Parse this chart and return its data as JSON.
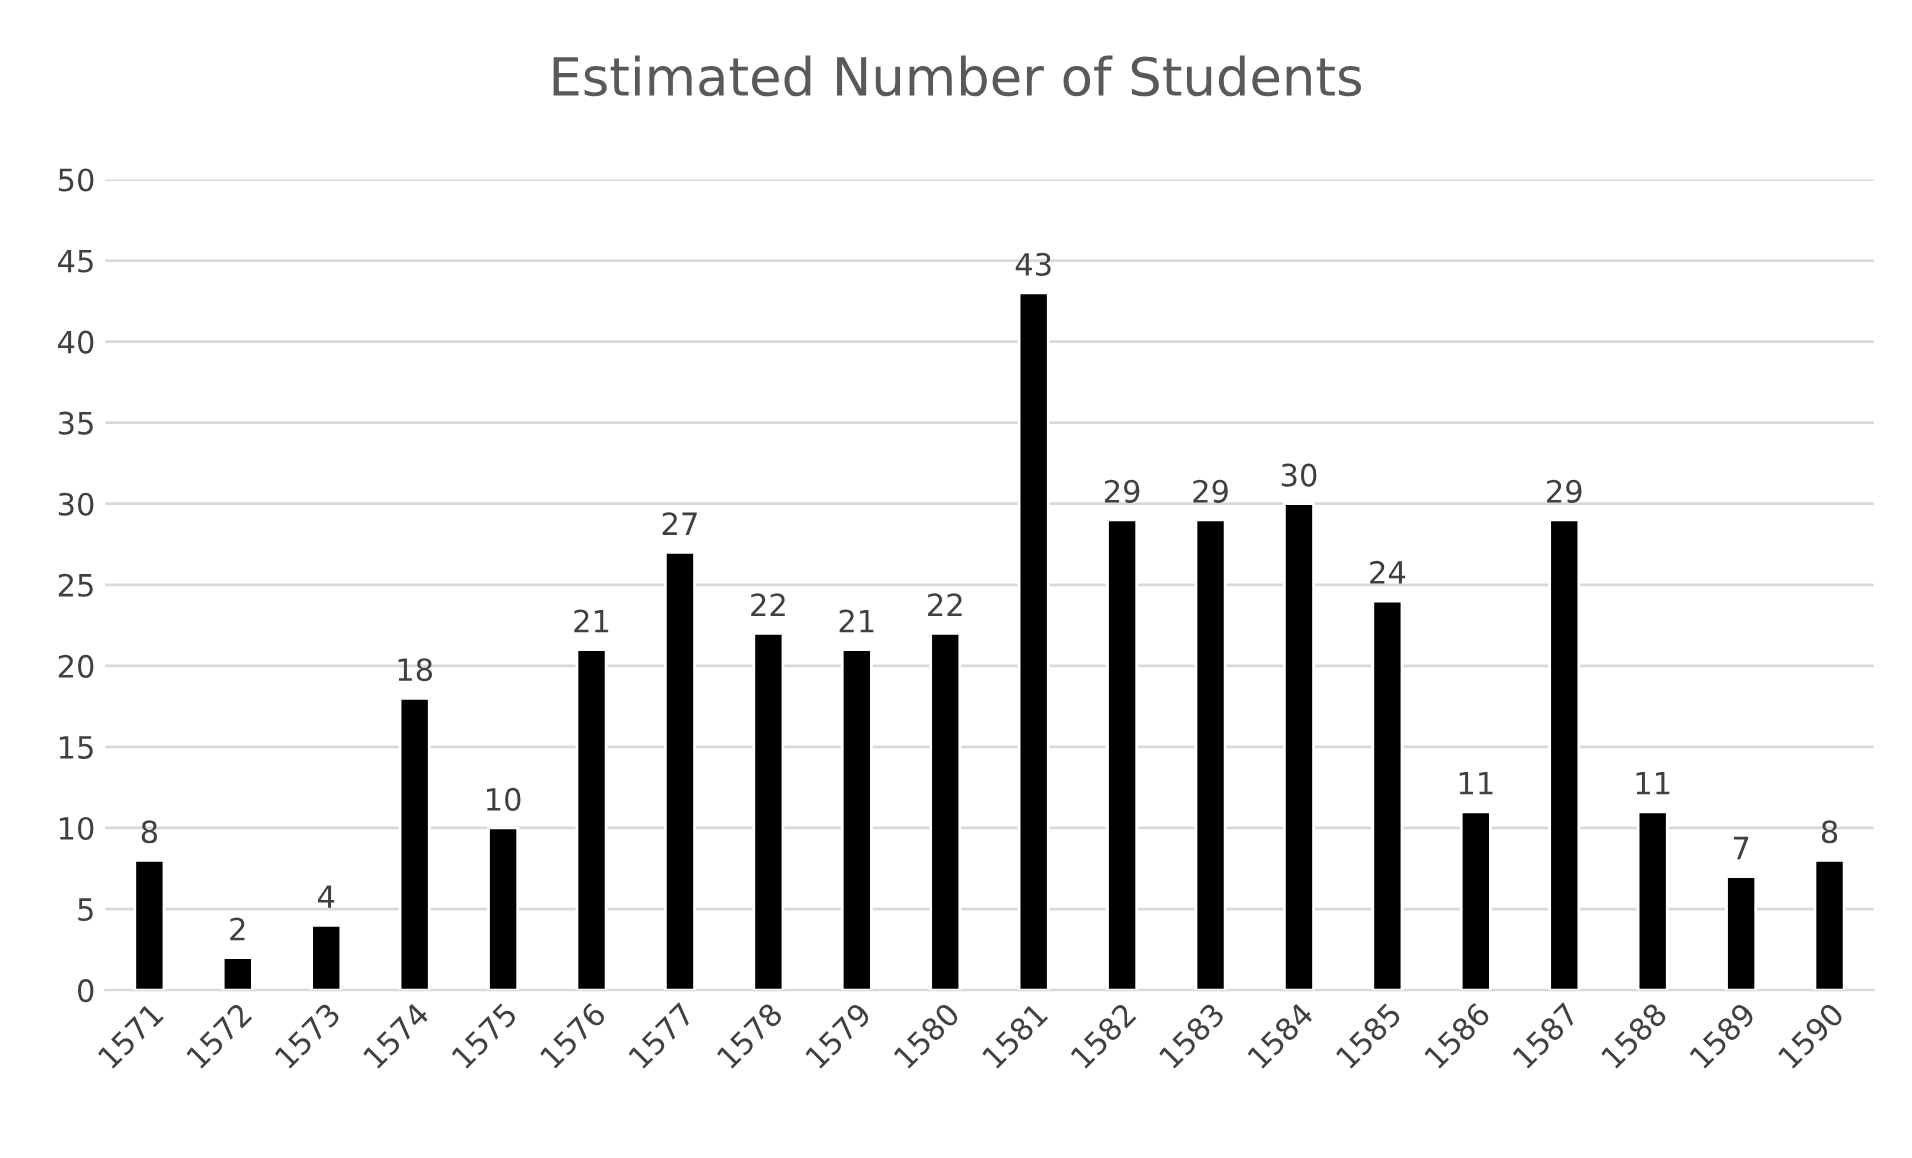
{
  "chart_data": {
    "type": "bar",
    "title": "Estimated Number of Students",
    "categories": [
      "1571",
      "1572",
      "1573",
      "1574",
      "1575",
      "1576",
      "1577",
      "1578",
      "1579",
      "1580",
      "1581",
      "1582",
      "1583",
      "1584",
      "1585",
      "1586",
      "1587",
      "1588",
      "1589",
      "1590"
    ],
    "values": [
      8,
      2,
      4,
      18,
      10,
      21,
      27,
      22,
      21,
      22,
      43,
      29,
      29,
      30,
      24,
      11,
      29,
      11,
      7,
      8
    ],
    "color": "#000000",
    "ylim": [
      0,
      50
    ],
    "yticks": [
      0,
      5,
      10,
      15,
      20,
      25,
      30,
      35,
      40,
      45,
      50
    ],
    "grid": "y",
    "data_labels": true
  }
}
